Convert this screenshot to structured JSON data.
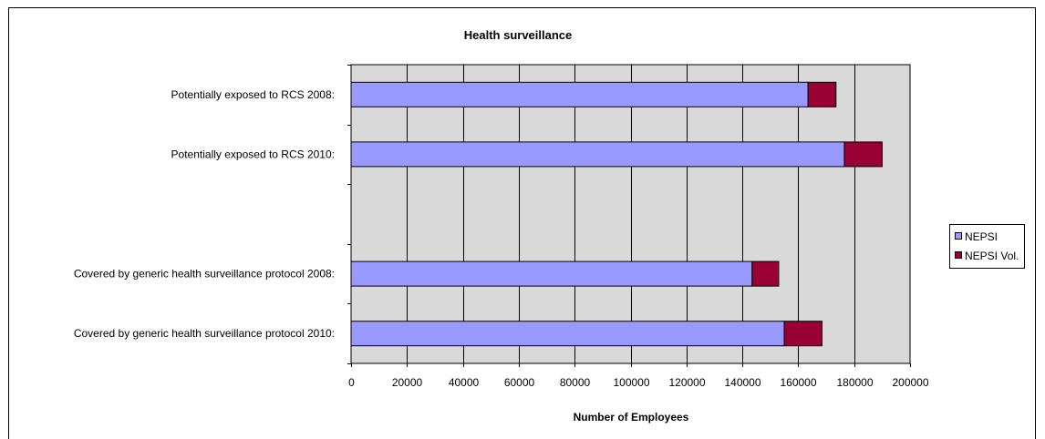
{
  "chart_data": {
    "type": "bar",
    "orientation": "horizontal",
    "stacked": true,
    "title": "Health surveillance",
    "xlabel": "Number of Employees",
    "ylabel": "",
    "xlim": [
      0,
      200000
    ],
    "x_ticks": [
      "0",
      "20000",
      "40000",
      "60000",
      "80000",
      "100000",
      "120000",
      "140000",
      "160000",
      "180000",
      "200000"
    ],
    "grid": true,
    "legend_position": "right",
    "categories": [
      "Potentially exposed to RCS 2008:",
      "Potentially exposed to RCS 2010:",
      "",
      "Covered by generic  health surveillance protocol 2008:",
      "Covered by generic  health surveillance protocol 2010:"
    ],
    "series": [
      {
        "name": "NEPSI",
        "color": "#9999ff",
        "values": [
          163500,
          176500,
          null,
          143500,
          155000
        ]
      },
      {
        "name": "NEPSI Vol.",
        "color": "#990033",
        "values": [
          10000,
          13500,
          null,
          9500,
          13500
        ]
      }
    ]
  }
}
